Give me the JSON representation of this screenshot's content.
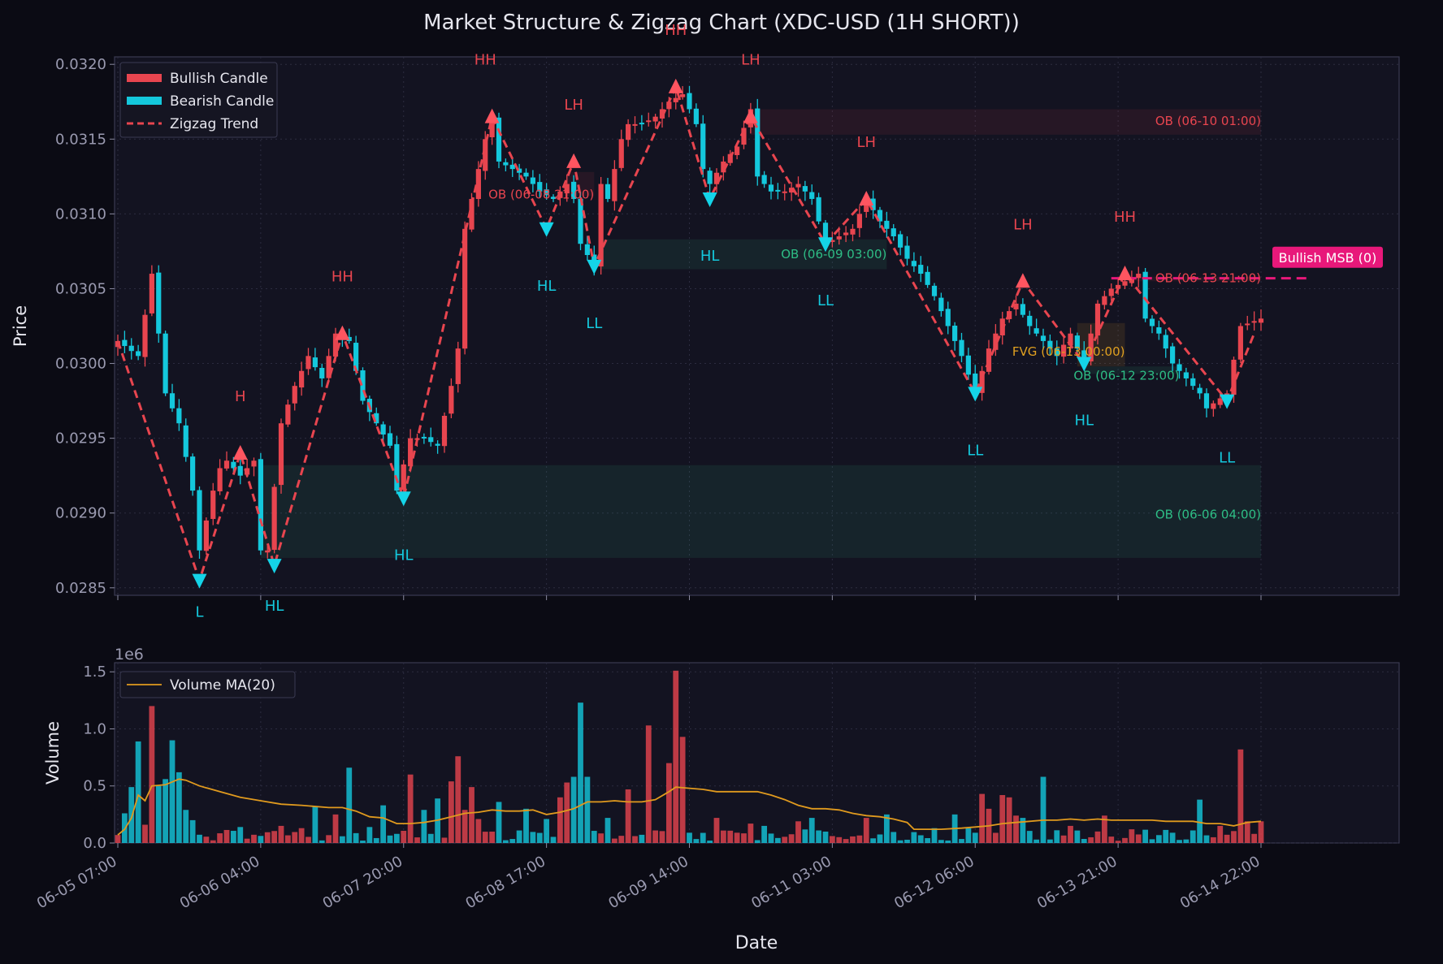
{
  "chart_data": {
    "type": "candlestick",
    "title": "Market Structure & Zigzag Chart (XDC-USD (1H SHORT))",
    "xlabel": "Date",
    "price_panel": {
      "ylabel": "Price",
      "ylim": [
        0.02845,
        0.03205
      ],
      "yticks": [
        0.0285,
        0.029,
        0.0295,
        0.03,
        0.0305,
        0.031,
        0.0315,
        0.032
      ],
      "ytick_labels": [
        "0.0285",
        "0.0290",
        "0.0295",
        "0.0300",
        "0.0305",
        "0.0310",
        "0.0315",
        "0.0320"
      ]
    },
    "volume_panel": {
      "ylabel": "Volume",
      "scale_label": "1e6",
      "ylim": [
        0,
        1.58
      ],
      "yticks": [
        0,
        0.5,
        1.0,
        1.5
      ],
      "ytick_labels": [
        "0.0",
        "0.5",
        "1.0",
        "1.5"
      ]
    },
    "xticks": [
      {
        "i": 0,
        "label": "06-05 07:00"
      },
      {
        "i": 21,
        "label": "06-06 04:00"
      },
      {
        "i": 42,
        "label": "06-07 20:00"
      },
      {
        "i": 63,
        "label": "06-08 17:00"
      },
      {
        "i": 84,
        "label": "06-09 14:00"
      },
      {
        "i": 105,
        "label": "06-11 03:00"
      },
      {
        "i": 126,
        "label": "06-12 06:00"
      },
      {
        "i": 147,
        "label": "06-13 21:00"
      },
      {
        "i": 168,
        "label": "06-14 22:00"
      }
    ],
    "legend_price": [
      {
        "label": "Bullish Candle",
        "color": "#e8454f",
        "kind": "patch"
      },
      {
        "label": "Bearish Candle",
        "color": "#14c8dc",
        "kind": "patch"
      },
      {
        "label": "Zigzag Trend",
        "color": "#e8454f",
        "kind": "dashed"
      }
    ],
    "legend_volume": [
      {
        "label": "Volume MA(20)",
        "color": "#e09a1e",
        "kind": "line"
      }
    ],
    "colors": {
      "bull": "#e8454f",
      "bear": "#14c8dc",
      "ma": "#e09a1e",
      "msb": "#e8187a",
      "fvg": "#e0a020",
      "ob_bull": "#2ebd85",
      "ob_bear": "#e8454f"
    },
    "close_anchors": [
      [
        0,
        0.03015
      ],
      [
        3,
        0.03005
      ],
      [
        5,
        0.0306
      ],
      [
        7,
        0.0298
      ],
      [
        9,
        0.0296
      ],
      [
        11,
        0.02915
      ],
      [
        12,
        0.02875
      ],
      [
        13,
        0.02895
      ],
      [
        14,
        0.02915
      ],
      [
        15,
        0.0293
      ],
      [
        16,
        0.02935
      ],
      [
        18,
        0.02925
      ],
      [
        20,
        0.02935
      ],
      [
        21,
        0.02875
      ],
      [
        22,
        0.02875
      ],
      [
        24,
        0.0296
      ],
      [
        26,
        0.02985
      ],
      [
        28,
        0.03005
      ],
      [
        30,
        0.0299
      ],
      [
        32,
        0.0302
      ],
      [
        34,
        0.03015
      ],
      [
        36,
        0.02975
      ],
      [
        38,
        0.0296
      ],
      [
        40,
        0.02945
      ],
      [
        41,
        0.02915
      ],
      [
        43,
        0.0295
      ],
      [
        45,
        0.0295
      ],
      [
        47,
        0.02945
      ],
      [
        49,
        0.02985
      ],
      [
        50,
        0.0301
      ],
      [
        51,
        0.0309
      ],
      [
        52,
        0.0311
      ],
      [
        53,
        0.0313
      ],
      [
        54,
        0.0315
      ],
      [
        55,
        0.03165
      ],
      [
        56,
        0.03135
      ],
      [
        58,
        0.0313
      ],
      [
        60,
        0.03125
      ],
      [
        62,
        0.03115
      ],
      [
        64,
        0.0311
      ],
      [
        66,
        0.0312
      ],
      [
        67,
        0.0311
      ],
      [
        68,
        0.0308
      ],
      [
        70,
        0.03065
      ],
      [
        71,
        0.0312
      ],
      [
        72,
        0.0311
      ],
      [
        74,
        0.0315
      ],
      [
        75,
        0.0316
      ],
      [
        77,
        0.0316
      ],
      [
        79,
        0.03165
      ],
      [
        81,
        0.03175
      ],
      [
        83,
        0.0318
      ],
      [
        85,
        0.0316
      ],
      [
        86,
        0.0313
      ],
      [
        87,
        0.0312
      ],
      [
        89,
        0.03135
      ],
      [
        91,
        0.03145
      ],
      [
        93,
        0.0317
      ],
      [
        94,
        0.03125
      ],
      [
        96,
        0.03115
      ],
      [
        98,
        0.03115
      ],
      [
        100,
        0.0312
      ],
      [
        102,
        0.0311
      ],
      [
        104,
        0.0308
      ],
      [
        106,
        0.03085
      ],
      [
        108,
        0.0309
      ],
      [
        110,
        0.0311
      ],
      [
        112,
        0.03095
      ],
      [
        114,
        0.03085
      ],
      [
        116,
        0.0307
      ],
      [
        118,
        0.0306
      ],
      [
        120,
        0.03045
      ],
      [
        122,
        0.03025
      ],
      [
        124,
        0.03005
      ],
      [
        126,
        0.0298
      ],
      [
        128,
        0.0301
      ],
      [
        130,
        0.0303
      ],
      [
        132,
        0.0304
      ],
      [
        134,
        0.03025
      ],
      [
        136,
        0.03015
      ],
      [
        138,
        0.03005
      ],
      [
        140,
        0.0302
      ],
      [
        142,
        0.03
      ],
      [
        144,
        0.0304
      ],
      [
        146,
        0.0305
      ],
      [
        148,
        0.03055
      ],
      [
        150,
        0.0306
      ],
      [
        151,
        0.0303
      ],
      [
        153,
        0.0302
      ],
      [
        155,
        0.03
      ],
      [
        157,
        0.0299
      ],
      [
        159,
        0.0298
      ],
      [
        160,
        0.0297
      ],
      [
        163,
        0.0298
      ],
      [
        165,
        0.03025
      ],
      [
        168,
        0.0303
      ]
    ],
    "volume_peaks": [
      [
        0,
        0.07
      ],
      [
        1,
        0.26
      ],
      [
        2,
        0.49
      ],
      [
        3,
        0.89
      ],
      [
        4,
        0.16
      ],
      [
        5,
        1.2
      ],
      [
        6,
        0.5
      ],
      [
        7,
        0.56
      ],
      [
        8,
        0.9
      ],
      [
        9,
        0.62
      ],
      [
        10,
        0.29
      ],
      [
        11,
        0.2
      ],
      [
        18,
        0.14
      ],
      [
        24,
        0.15
      ],
      [
        27,
        0.13
      ],
      [
        29,
        0.32
      ],
      [
        32,
        0.25
      ],
      [
        34,
        0.66
      ],
      [
        37,
        0.14
      ],
      [
        39,
        0.33
      ],
      [
        41,
        0.08
      ],
      [
        43,
        0.6
      ],
      [
        45,
        0.29
      ],
      [
        47,
        0.39
      ],
      [
        49,
        0.54
      ],
      [
        50,
        0.76
      ],
      [
        51,
        0.29
      ],
      [
        52,
        0.49
      ],
      [
        53,
        0.21
      ],
      [
        56,
        0.36
      ],
      [
        60,
        0.3
      ],
      [
        63,
        0.21
      ],
      [
        65,
        0.4
      ],
      [
        66,
        0.53
      ],
      [
        67,
        0.58
      ],
      [
        68,
        1.23
      ],
      [
        69,
        0.58
      ],
      [
        72,
        0.22
      ],
      [
        75,
        0.47
      ],
      [
        78,
        1.03
      ],
      [
        81,
        0.7
      ],
      [
        82,
        1.51
      ],
      [
        83,
        0.93
      ],
      [
        84,
        0.09
      ],
      [
        88,
        0.22
      ],
      [
        91,
        0.09
      ],
      [
        93,
        0.17
      ],
      [
        95,
        0.15
      ],
      [
        100,
        0.19
      ],
      [
        102,
        0.22
      ],
      [
        103,
        0.11
      ],
      [
        110,
        0.22
      ],
      [
        113,
        0.25
      ],
      [
        120,
        0.13
      ],
      [
        123,
        0.25
      ],
      [
        125,
        0.13
      ],
      [
        127,
        0.43
      ],
      [
        128,
        0.3
      ],
      [
        130,
        0.42
      ],
      [
        131,
        0.4
      ],
      [
        132,
        0.24
      ],
      [
        133,
        0.22
      ],
      [
        135,
        0.03
      ],
      [
        136,
        0.58
      ],
      [
        140,
        0.15
      ],
      [
        145,
        0.24
      ],
      [
        147,
        0.02
      ],
      [
        149,
        0.12
      ],
      [
        155,
        0.09
      ],
      [
        159,
        0.38
      ],
      [
        162,
        0.15
      ],
      [
        165,
        0.82
      ],
      [
        166,
        0.19
      ],
      [
        168,
        0.19
      ]
    ],
    "volume_ma": [
      [
        0,
        0.07
      ],
      [
        1,
        0.12
      ],
      [
        2,
        0.22
      ],
      [
        3,
        0.42
      ],
      [
        4,
        0.37
      ],
      [
        5,
        0.5
      ],
      [
        7,
        0.51
      ],
      [
        9,
        0.56
      ],
      [
        10,
        0.55
      ],
      [
        12,
        0.5
      ],
      [
        15,
        0.45
      ],
      [
        18,
        0.4
      ],
      [
        21,
        0.37
      ],
      [
        24,
        0.34
      ],
      [
        27,
        0.33
      ],
      [
        31,
        0.31
      ],
      [
        33,
        0.31
      ],
      [
        35,
        0.28
      ],
      [
        37,
        0.23
      ],
      [
        39,
        0.22
      ],
      [
        41,
        0.17
      ],
      [
        43,
        0.17
      ],
      [
        45,
        0.18
      ],
      [
        47,
        0.2
      ],
      [
        49,
        0.23
      ],
      [
        51,
        0.26
      ],
      [
        53,
        0.27
      ],
      [
        55,
        0.29
      ],
      [
        57,
        0.28
      ],
      [
        59,
        0.28
      ],
      [
        61,
        0.29
      ],
      [
        63,
        0.25
      ],
      [
        65,
        0.27
      ],
      [
        67,
        0.3
      ],
      [
        69,
        0.36
      ],
      [
        71,
        0.36
      ],
      [
        73,
        0.37
      ],
      [
        75,
        0.36
      ],
      [
        77,
        0.36
      ],
      [
        79,
        0.38
      ],
      [
        81,
        0.45
      ],
      [
        82,
        0.49
      ],
      [
        84,
        0.48
      ],
      [
        86,
        0.47
      ],
      [
        88,
        0.45
      ],
      [
        90,
        0.45
      ],
      [
        92,
        0.45
      ],
      [
        94,
        0.45
      ],
      [
        96,
        0.42
      ],
      [
        98,
        0.38
      ],
      [
        100,
        0.33
      ],
      [
        102,
        0.3
      ],
      [
        104,
        0.3
      ],
      [
        106,
        0.29
      ],
      [
        108,
        0.26
      ],
      [
        110,
        0.24
      ],
      [
        112,
        0.23
      ],
      [
        114,
        0.21
      ],
      [
        116,
        0.18
      ],
      [
        117,
        0.12
      ],
      [
        119,
        0.12
      ],
      [
        121,
        0.12
      ],
      [
        124,
        0.13
      ],
      [
        126,
        0.14
      ],
      [
        128,
        0.15
      ],
      [
        130,
        0.17
      ],
      [
        132,
        0.18
      ],
      [
        134,
        0.19
      ],
      [
        136,
        0.2
      ],
      [
        138,
        0.2
      ],
      [
        140,
        0.21
      ],
      [
        142,
        0.2
      ],
      [
        144,
        0.21
      ],
      [
        146,
        0.2
      ],
      [
        148,
        0.2
      ],
      [
        150,
        0.2
      ],
      [
        152,
        0.2
      ],
      [
        154,
        0.19
      ],
      [
        156,
        0.19
      ],
      [
        158,
        0.19
      ],
      [
        160,
        0.17
      ],
      [
        162,
        0.17
      ],
      [
        164,
        0.15
      ],
      [
        166,
        0.18
      ],
      [
        168,
        0.19
      ]
    ],
    "zigzag": [
      [
        0,
        0.03015
      ],
      [
        12,
        0.02855
      ],
      [
        18,
        0.0294
      ],
      [
        23,
        0.02865
      ],
      [
        33,
        0.0302
      ],
      [
        42,
        0.0291
      ],
      [
        55,
        0.03165
      ],
      [
        63,
        0.0309
      ],
      [
        67,
        0.03135
      ],
      [
        70,
        0.03065
      ],
      [
        82,
        0.03185
      ],
      [
        87,
        0.0311
      ],
      [
        93,
        0.03165
      ],
      [
        104,
        0.0308
      ],
      [
        110,
        0.0311
      ],
      [
        126,
        0.0298
      ],
      [
        133,
        0.03055
      ],
      [
        142,
        0.03
      ],
      [
        148,
        0.0306
      ],
      [
        163,
        0.02975
      ],
      [
        167,
        0.0302
      ]
    ],
    "pivots": [
      {
        "i": 12,
        "price": 0.02855,
        "dir": "down"
      },
      {
        "i": 18,
        "price": 0.0294,
        "dir": "up"
      },
      {
        "i": 23,
        "price": 0.02865,
        "dir": "down"
      },
      {
        "i": 33,
        "price": 0.0302,
        "dir": "up"
      },
      {
        "i": 42,
        "price": 0.0291,
        "dir": "down"
      },
      {
        "i": 55,
        "price": 0.03165,
        "dir": "up"
      },
      {
        "i": 63,
        "price": 0.0309,
        "dir": "down"
      },
      {
        "i": 67,
        "price": 0.03135,
        "dir": "up"
      },
      {
        "i": 70,
        "price": 0.03065,
        "dir": "down"
      },
      {
        "i": 82,
        "price": 0.03185,
        "dir": "up"
      },
      {
        "i": 87,
        "price": 0.0311,
        "dir": "down"
      },
      {
        "i": 93,
        "price": 0.03165,
        "dir": "up"
      },
      {
        "i": 104,
        "price": 0.0308,
        "dir": "down"
      },
      {
        "i": 110,
        "price": 0.0311,
        "dir": "up"
      },
      {
        "i": 126,
        "price": 0.0298,
        "dir": "down"
      },
      {
        "i": 133,
        "price": 0.03055,
        "dir": "up"
      },
      {
        "i": 142,
        "price": 0.03,
        "dir": "down"
      },
      {
        "i": 148,
        "price": 0.0306,
        "dir": "up"
      },
      {
        "i": 163,
        "price": 0.02975,
        "dir": "down"
      }
    ],
    "structure_labels": [
      {
        "text": "L",
        "i": 12,
        "price": 0.02834,
        "color": "#14c8dc"
      },
      {
        "text": "H",
        "i": 18,
        "price": 0.02978,
        "color": "#e8454f"
      },
      {
        "text": "HL",
        "i": 23,
        "price": 0.02838,
        "color": "#14c8dc"
      },
      {
        "text": "HH",
        "i": 33,
        "price": 0.03058,
        "color": "#e8454f"
      },
      {
        "text": "HL",
        "i": 42,
        "price": 0.02872,
        "color": "#14c8dc"
      },
      {
        "text": "HH",
        "i": 54,
        "price": 0.03203,
        "color": "#e8454f"
      },
      {
        "text": "HL",
        "i": 63,
        "price": 0.03052,
        "color": "#14c8dc"
      },
      {
        "text": "LH",
        "i": 67,
        "price": 0.03173,
        "color": "#e8454f"
      },
      {
        "text": "LL",
        "i": 70,
        "price": 0.03027,
        "color": "#14c8dc"
      },
      {
        "text": "HH",
        "i": 82,
        "price": 0.03223,
        "color": "#e8454f"
      },
      {
        "text": "HL",
        "i": 87,
        "price": 0.03072,
        "color": "#14c8dc"
      },
      {
        "text": "LH",
        "i": 93,
        "price": 0.03203,
        "color": "#e8454f"
      },
      {
        "text": "LL",
        "i": 104,
        "price": 0.03042,
        "color": "#14c8dc"
      },
      {
        "text": "LH",
        "i": 110,
        "price": 0.03148,
        "color": "#e8454f"
      },
      {
        "text": "LL",
        "i": 126,
        "price": 0.02942,
        "color": "#14c8dc"
      },
      {
        "text": "LH",
        "i": 133,
        "price": 0.03093,
        "color": "#e8454f"
      },
      {
        "text": "HL",
        "i": 142,
        "price": 0.02962,
        "color": "#14c8dc"
      },
      {
        "text": "HH",
        "i": 148,
        "price": 0.03098,
        "color": "#e8454f"
      },
      {
        "text": "LL",
        "i": 163,
        "price": 0.02937,
        "color": "#14c8dc"
      }
    ],
    "zones": [
      {
        "label": "OB (06-06 04:00)",
        "kind": "ob_bull",
        "i0": 21,
        "i1": 168,
        "p0": 0.0287,
        "p1": 0.02932,
        "label_i": 168,
        "label_price": 0.02899
      },
      {
        "label": "OB (06-09 03:00)",
        "kind": "ob_bull",
        "i0": 71,
        "i1": 113,
        "p0": 0.03063,
        "p1": 0.03083,
        "label_i": 113,
        "label_price": 0.03073
      },
      {
        "label": "OB (06-10 01:00)",
        "kind": "ob_bear",
        "i0": 93,
        "i1": 168,
        "p0": 0.03153,
        "p1": 0.0317,
        "label_i": 168,
        "label_price": 0.03162
      },
      {
        "label": "OB (06-08 21:00)",
        "kind": "ob_bear",
        "i0": 66,
        "i1": 70,
        "p0": 0.03112,
        "p1": 0.03128,
        "label_i": 70,
        "label_price": 0.03113
      },
      {
        "label": "OB (06-13 21:00)",
        "kind": "ob_bear",
        "i0": 147,
        "i1": 168,
        "p0": 0.03055,
        "p1": 0.03058,
        "label_i": 168,
        "label_price": 0.03057
      },
      {
        "label": "FVG (06-13 00:00)",
        "kind": "fvg",
        "i0": 141,
        "i1": 148,
        "p0": 0.02998,
        "p1": 0.03027,
        "label_i": 148,
        "label_price": 0.03008
      },
      {
        "label": "OB (06-12 23:00)",
        "kind": "ob_bull",
        "i0": 142,
        "i1": 156,
        "p0": 0.02993,
        "p1": 0.02998,
        "label_i": 156,
        "label_price": 0.02992
      }
    ],
    "msb": {
      "label": "Bullish MSB (0)",
      "price": 0.03057,
      "i0": 146,
      "i1": 175
    }
  }
}
